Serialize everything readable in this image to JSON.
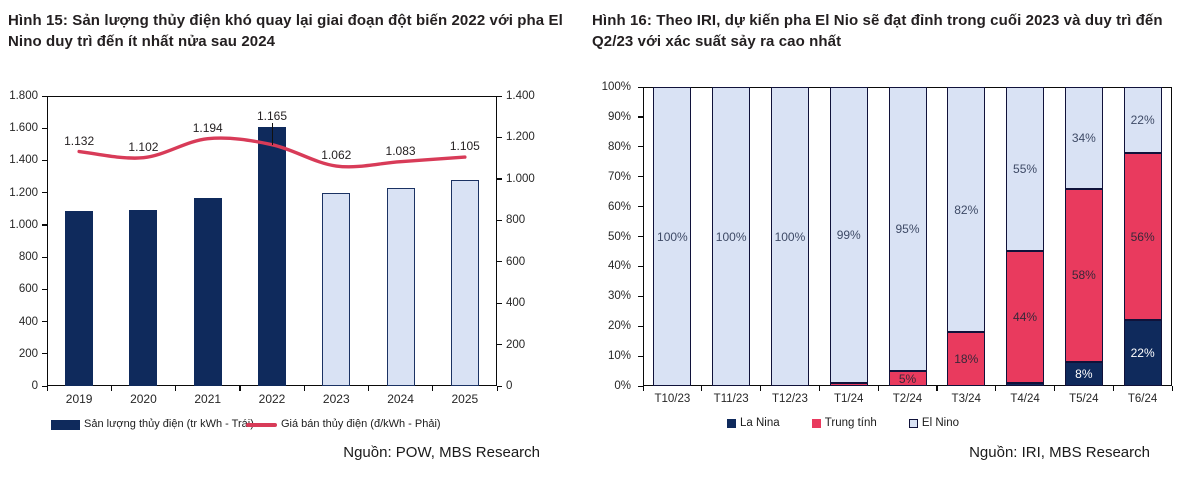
{
  "colors": {
    "navy": "#0f2a5c",
    "light_blue": "#d9e2f4",
    "light_blue_border": "#1b3263",
    "red": "#e93a5e",
    "line_red": "#d83b58",
    "title_text": "#231f20",
    "axis_text": "#262626",
    "label_white": "#ffffff",
    "label_on_red": "#372839",
    "label_on_blue": "#3e4a66"
  },
  "chart_data": [
    {
      "type": "combo-bar-line",
      "title": "Hình 15: Sản lượng thủy điện khó quay lại giai đoạn đột biến 2022 với pha El Nino duy trì đến ít nhất nửa sau 2024",
      "categories": [
        "2019",
        "2020",
        "2021",
        "2022",
        "2023",
        "2024",
        "2025"
      ],
      "bar_series": {
        "name": "Sản lượng thủy điện (tr kWh - Trái)",
        "axis": "left",
        "values": [
          1085,
          1095,
          1165,
          1610,
          1200,
          1230,
          1280
        ],
        "forecast_flags": [
          false,
          false,
          false,
          false,
          true,
          true,
          true
        ]
      },
      "line_series": {
        "name": "Giá bán thủy điện (đ/kWh - Phải)",
        "axis": "right",
        "values": [
          1132,
          1102,
          1194,
          1165,
          1062,
          1083,
          1105
        ],
        "point_labels": [
          "1.132",
          "1.102",
          "1.194",
          "1.165",
          "1.062",
          "1.083",
          "1.105"
        ]
      },
      "left_axis": {
        "min": 0,
        "max": 1800,
        "tick_labels": [
          "1.800",
          "1.600",
          "1.400",
          "1.200",
          "1.000",
          "800",
          "600",
          "400",
          "200",
          "0"
        ]
      },
      "right_axis": {
        "min": 0,
        "max": 1400,
        "tick_labels": [
          "1.400",
          "1.200",
          "1.000",
          "800",
          "600",
          "400",
          "200",
          "0"
        ]
      },
      "grid": false,
      "legend_position": "bottom",
      "source": "Nguồn: POW, MBS Research"
    },
    {
      "type": "stacked-bar-100",
      "title": "Hình 16: Theo IRI, dự kiến pha El Nio sẽ đạt đỉnh trong cuối 2023 và duy trì đến Q2/23 với xác suất sảy ra cao nhất",
      "categories": [
        "T10/23",
        "T11/23",
        "T12/23",
        "T1/24",
        "T2/24",
        "T3/24",
        "T4/24",
        "T5/24",
        "T6/24"
      ],
      "series": [
        {
          "name": "La Nina",
          "color_key": "navy",
          "values": [
            0,
            0,
            0,
            0,
            0,
            0,
            1,
            8,
            22
          ]
        },
        {
          "name": "Trung tính",
          "color_key": "red",
          "values": [
            0,
            0,
            0,
            1,
            5,
            18,
            44,
            58,
            56
          ]
        },
        {
          "name": "El Nino",
          "color_key": "light_blue",
          "values": [
            100,
            100,
            100,
            99,
            95,
            82,
            55,
            34,
            22
          ]
        }
      ],
      "y_axis": {
        "min": 0,
        "max": 100,
        "tick_labels": [
          "100%",
          "90%",
          "80%",
          "70%",
          "60%",
          "50%",
          "40%",
          "30%",
          "20%",
          "10%",
          "0%"
        ]
      },
      "data_label_format": "percent",
      "data_label_threshold": 5,
      "grid": false,
      "legend_position": "bottom",
      "source": "Nguồn: IRI, MBS Research"
    }
  ]
}
